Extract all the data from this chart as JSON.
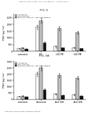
{
  "header_text": "Patent Application Publication    May 3, 2012 / Sheet 5 of 7    US 2012/0108647 A1",
  "fig_a_label": "FIG. 6",
  "fig_b_label": "FIG. 6B",
  "fig_a": {
    "legend": [
      "IL-1β baseline",
      "25mg Celecoxib",
      "25mg Test compound + anti-COX2 antibody"
    ],
    "legend_colors": [
      "#ffffff",
      "#bbbbbb",
      "#111111"
    ],
    "categories": [
      "untreated",
      "LPS",
      "100 PM",
      "500 PM"
    ],
    "bar_values": [
      [
        200,
        1800,
        350,
        280
      ],
      [
        250,
        2300,
        1700,
        1400
      ],
      [
        180,
        650,
        250,
        200
      ]
    ],
    "bar_errors": [
      [
        30,
        150,
        60,
        50
      ],
      [
        40,
        180,
        140,
        120
      ],
      [
        25,
        80,
        40,
        35
      ]
    ],
    "ylabel": "PGE2 (pg / ml)",
    "ylim": [
      0,
      2800
    ],
    "yticks": [
      0,
      500,
      1000,
      1500,
      2000,
      2500
    ]
  },
  "fig_b": {
    "legend": [
      "IL-1β baseline",
      "25mg Celecoxib",
      "25mg Test compound + anti-COX2 antibody"
    ],
    "legend_colors": [
      "#ffffff",
      "#bbbbbb",
      "#111111"
    ],
    "categories": [
      "untreated",
      "Etoricoxib",
      "Anti 406",
      "Anti 406"
    ],
    "bar_values": [
      [
        200,
        2000,
        400,
        350
      ],
      [
        250,
        2500,
        1900,
        1700
      ],
      [
        180,
        750,
        300,
        260
      ]
    ],
    "bar_errors": [
      [
        30,
        160,
        60,
        50
      ],
      [
        40,
        200,
        150,
        130
      ],
      [
        25,
        90,
        45,
        40
      ]
    ],
    "ylabel": "PGE2 (pg / ml)",
    "ylim": [
      0,
      3000
    ],
    "yticks": [
      0,
      500,
      1000,
      1500,
      2000,
      2500,
      3000
    ],
    "footnote": "* Significant values as 99% confidence interval"
  },
  "background_color": "#ffffff",
  "bar_width": 0.2
}
